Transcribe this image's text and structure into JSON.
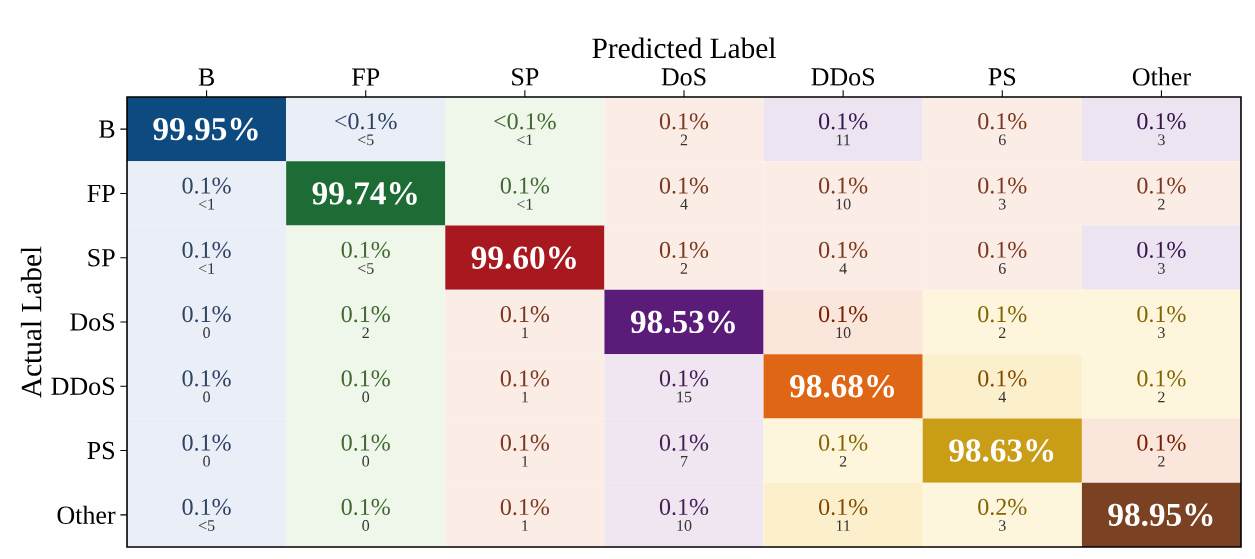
{
  "chart_data": {
    "type": "heatmap",
    "xlabel": "Predicted Label",
    "ylabel": "Actual Label",
    "categories": [
      "B",
      "FP",
      "SP",
      "DoS",
      "DDoS",
      "PS",
      "Other"
    ],
    "y_categories": [
      "B",
      "FP",
      "SP",
      "DoS",
      "DDoS",
      "PS",
      "Other"
    ],
    "cells": [
      [
        99.95,
        null,
        null,
        0.1,
        0.1,
        0.1,
        0.1
      ],
      [
        0.1,
        99.74,
        0.1,
        0.1,
        0.1,
        0.1,
        0.1
      ],
      [
        0.1,
        0.1,
        99.6,
        0.1,
        0.1,
        0.1,
        0.1
      ],
      [
        0.1,
        0.1,
        0.1,
        98.53,
        0.1,
        0.1,
        0.1
      ],
      [
        0.1,
        0.1,
        0.1,
        0.1,
        98.68,
        0.1,
        0.1
      ],
      [
        0.1,
        0.1,
        0.1,
        0.1,
        0.1,
        98.63,
        0.1
      ],
      [
        0.1,
        0.1,
        0.1,
        0.1,
        0.1,
        0.2,
        98.95
      ]
    ],
    "cell_labels": [
      [
        "99.95%",
        "<0.1%",
        "<0.1%",
        "0.1%",
        "0.1%",
        "0.1%",
        "0.1%"
      ],
      [
        "0.1%",
        "99.74%",
        "0.1%",
        "0.1%",
        "0.1%",
        "0.1%",
        "0.1%"
      ],
      [
        "0.1%",
        "0.1%",
        "99.60%",
        "0.1%",
        "0.1%",
        "0.1%",
        "0.1%"
      ],
      [
        "0.1%",
        "0.1%",
        "0.1%",
        "98.53%",
        "0.1%",
        "0.1%",
        "0.1%"
      ],
      [
        "0.1%",
        "0.1%",
        "0.1%",
        "0.1%",
        "98.68%",
        "0.1%",
        "0.1%"
      ],
      [
        "0.1%",
        "0.1%",
        "0.1%",
        "0.1%",
        "0.1%",
        "98.63%",
        "0.1%"
      ],
      [
        "0.1%",
        "0.1%",
        "0.1%",
        "0.1%",
        "0.1%",
        "0.2%",
        "98.95%"
      ]
    ],
    "annotations": [
      "<5",
      "<1",
      "2",
      "11",
      "6",
      "3",
      "<1",
      "<1",
      "4",
      "10",
      "3",
      "2",
      "<1",
      "<5",
      "2",
      "4",
      "6",
      "3",
      "0",
      "2",
      "1",
      "10",
      "2",
      "3",
      "0",
      "0",
      "1",
      "15",
      "4",
      "2",
      "0",
      "0",
      "1",
      "7",
      "2",
      "2",
      "<5",
      "0",
      "1",
      "10",
      "11",
      "3"
    ],
    "colors": [
      [
        "#0d4a80",
        "#eaeef6",
        "#eef7ea",
        "#fbece6",
        "#ece4f1",
        "#fbece6",
        "#ece4f1"
      ],
      [
        "#eaeef6",
        "#1d6b35",
        "#eef7ea",
        "#fbece6",
        "#fbece6",
        "#fbece6",
        "#fbece6"
      ],
      [
        "#eaeef6",
        "#eef7ea",
        "#a8181f",
        "#fbece6",
        "#fbece6",
        "#fbece6",
        "#ece4f1"
      ],
      [
        "#eaeef6",
        "#eef7ea",
        "#fbece6",
        "#5b1b78",
        "#fbe6dc",
        "#fdf6dc",
        "#fdf6dc"
      ],
      [
        "#eaeef6",
        "#eef7ea",
        "#fbece6",
        "#efe6f2",
        "#df6614",
        "#fcf0cc",
        "#fdf6dc"
      ],
      [
        "#eaeef6",
        "#eef7ea",
        "#fbece6",
        "#efe6f2",
        "#fdf6dc",
        "#c99d16",
        "#fbe6dc"
      ],
      [
        "#eaeef6",
        "#eef7ea",
        "#fbece6",
        "#efe6f2",
        "#fcf0cc",
        "#fdf6dc",
        "#7a4222"
      ]
    ]
  }
}
